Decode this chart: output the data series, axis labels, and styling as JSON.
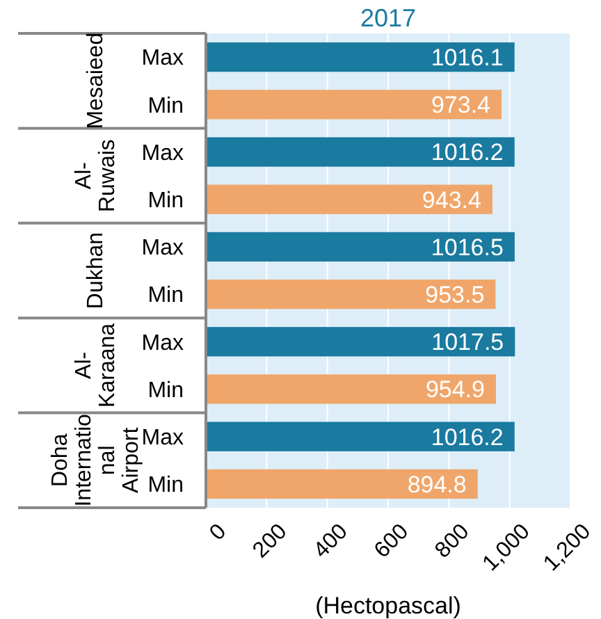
{
  "chart_data": {
    "type": "bar",
    "orientation": "horizontal",
    "title": "2017",
    "xlabel": "(Hectopascal)",
    "categories": [
      "Mesaieed",
      "Al-Ruwais",
      "Dukhan",
      "Al-Karaana",
      "Doha International Airport"
    ],
    "series": [
      {
        "name": "Max",
        "color": "#1a7aa0",
        "values": [
          1016.1,
          1016.2,
          1016.5,
          1017.5,
          1016.2
        ]
      },
      {
        "name": "Min",
        "color": "#f0a66a",
        "values": [
          973.4,
          943.4,
          953.5,
          954.9,
          894.8
        ]
      }
    ],
    "xlim": [
      0,
      1200
    ],
    "xticks": [
      0,
      200,
      400,
      600,
      800,
      {
        "value": 1000,
        "label": "1,000"
      },
      {
        "value": 1200,
        "label": "1,200"
      }
    ],
    "data_labels": true,
    "grid": "x"
  }
}
